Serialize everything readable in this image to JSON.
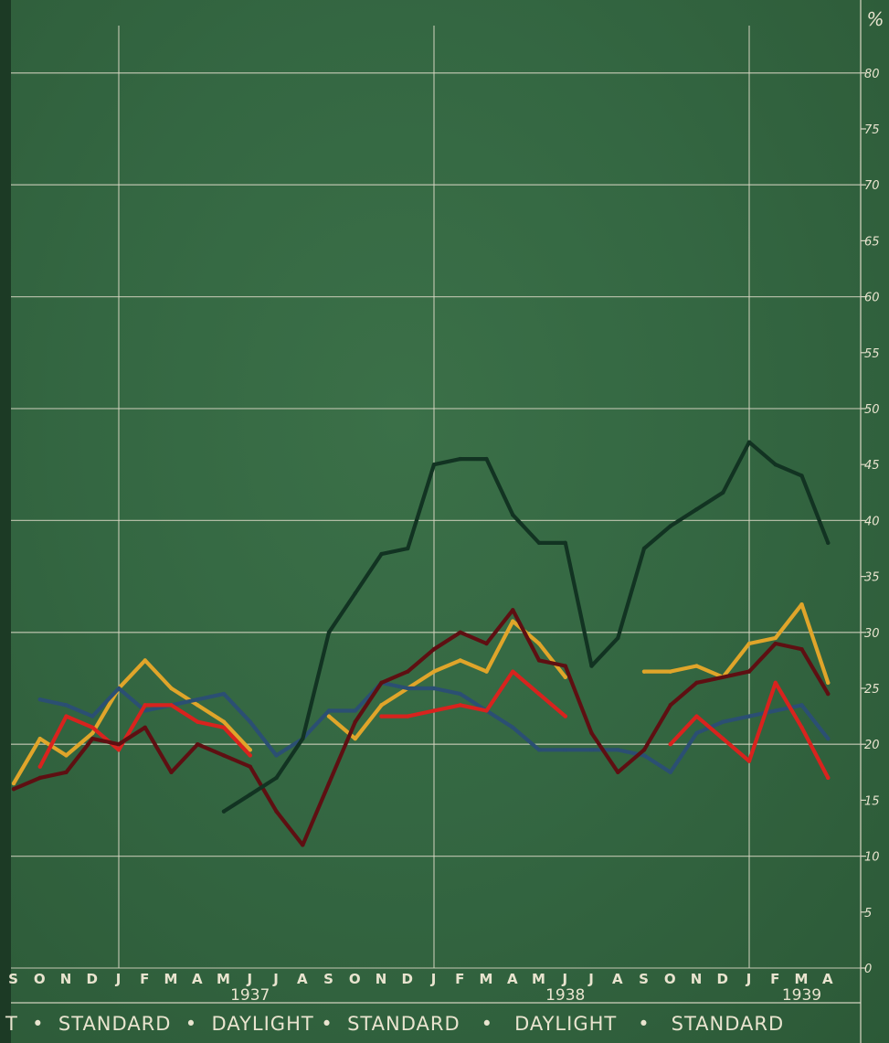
{
  "chart_data": {
    "type": "line",
    "title": "",
    "xlabel": "",
    "ylabel": "",
    "y_unit_label": "%",
    "ylim": [
      0,
      85
    ],
    "y_ticks": [
      0,
      5,
      10,
      15,
      20,
      25,
      30,
      35,
      40,
      45,
      50,
      55,
      60,
      65,
      70,
      75,
      80
    ],
    "grid": true,
    "x_months": [
      "S",
      "O",
      "N",
      "D",
      "J",
      "F",
      "M",
      "A",
      "M",
      "J",
      "J",
      "A",
      "S",
      "O",
      "N",
      "D",
      "J",
      "F",
      "M",
      "A",
      "M",
      "J",
      "J",
      "A",
      "S",
      "O",
      "N",
      "D",
      "J",
      "F",
      "M",
      "A"
    ],
    "x_periods": [
      "1936-09",
      "1936-10",
      "1936-11",
      "1936-12",
      "1937-01",
      "1937-02",
      "1937-03",
      "1937-04",
      "1937-05",
      "1937-06",
      "1937-07",
      "1937-08",
      "1937-09",
      "1937-10",
      "1937-11",
      "1937-12",
      "1938-01",
      "1938-02",
      "1938-03",
      "1938-04",
      "1938-05",
      "1938-06",
      "1938-07",
      "1938-08",
      "1938-09",
      "1938-10",
      "1938-11",
      "1938-12",
      "1939-01",
      "1939-02",
      "1939-03",
      "1939-04"
    ],
    "year_labels": [
      {
        "text": "1937",
        "at_index": 9
      },
      {
        "text": "1938",
        "at_index": 21
      },
      {
        "text": "1939",
        "at_index": 30
      }
    ],
    "season_band": "T  •  STANDARD  •  DAYLIGHT •  STANDARD   •   DAYLIGHT   •   STANDARD",
    "series": [
      {
        "color": "#e0a52a",
        "values": [
          16.5,
          20.5,
          19,
          21,
          25,
          27.5,
          25,
          23.5,
          22,
          19.5,
          null,
          null,
          22.5,
          20.5,
          23.5,
          25,
          26.5,
          27.5,
          26.5,
          31,
          29,
          26,
          null,
          null,
          26.5,
          26.5,
          27,
          26,
          29,
          29.5,
          32.5,
          25.5
        ]
      },
      {
        "color": "#2b4f73",
        "values": [
          null,
          24,
          23.5,
          22.5,
          25,
          23,
          23.5,
          24,
          24.5,
          22,
          19,
          20.5,
          23,
          23,
          25.5,
          25,
          25,
          24.5,
          23,
          21.5,
          19.5,
          19.5,
          19.5,
          19.5,
          19,
          17.5,
          21,
          22,
          22.5,
          23,
          23.5,
          20.5
        ]
      },
      {
        "color": "#d8231e",
        "values": [
          null,
          18,
          22.5,
          21.5,
          19.5,
          23.5,
          23.5,
          22,
          21.5,
          19,
          null,
          null,
          null,
          null,
          22.5,
          22.5,
          23,
          23.5,
          23,
          26.5,
          24.5,
          22.5,
          null,
          null,
          null,
          20,
          22.5,
          20.5,
          18.5,
          25.5,
          21.5,
          17
        ]
      },
      {
        "color": "#5e0f12",
        "values": [
          16,
          17,
          17.5,
          20.5,
          20,
          21.5,
          17.5,
          20,
          19,
          18,
          14,
          11,
          16.5,
          22,
          25.5,
          26.5,
          28.5,
          30,
          29,
          32,
          27.5,
          27,
          21,
          17.5,
          19.5,
          23.5,
          25.5,
          26,
          26.5,
          29,
          28.5,
          24.5
        ]
      },
      {
        "color": "#123322",
        "values": [
          null,
          null,
          null,
          null,
          null,
          null,
          null,
          null,
          14,
          15.5,
          17,
          20.5,
          30,
          33.5,
          37,
          37.5,
          45,
          45.5,
          45.5,
          40.5,
          38,
          38,
          27,
          29.5,
          37.5,
          39.5,
          41,
          42.5,
          47,
          45,
          44,
          38
        ]
      }
    ]
  }
}
